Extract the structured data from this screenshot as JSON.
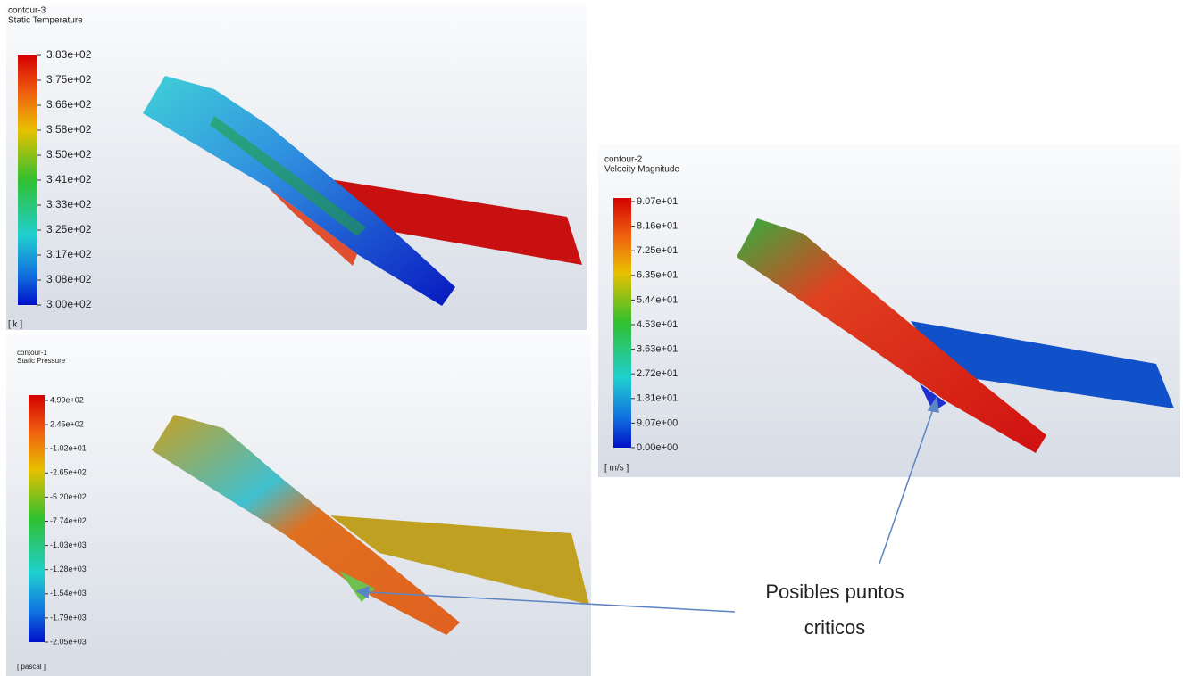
{
  "panels": [
    {
      "title": "contour-3",
      "subtitle": "Static Temperature",
      "legend": [
        "3.83e+02",
        "3.75e+02",
        "3.66e+02",
        "3.58e+02",
        "3.50e+02",
        "3.41e+02",
        "3.33e+02",
        "3.25e+02",
        "3.17e+02",
        "3.08e+02",
        "3.00e+02"
      ],
      "unit": "[ k ]"
    },
    {
      "title": "contour-1",
      "subtitle": "Static Pressure",
      "legend": [
        "4.99e+02",
        "2.45e+02",
        "-1.02e+01",
        "-2.65e+02",
        "-5.20e+02",
        "-7.74e+02",
        "-1.03e+03",
        "-1.28e+03",
        "-1.54e+03",
        "-1.79e+03",
        "-2.05e+03"
      ],
      "unit": "[ pascal ]"
    },
    {
      "title": "contour-2",
      "subtitle": "Velocity Magnitude",
      "legend": [
        "9.07e+01",
        "8.16e+01",
        "7.25e+01",
        "6.35e+01",
        "5.44e+01",
        "4.53e+01",
        "3.63e+01",
        "2.72e+01",
        "1.81e+01",
        "9.07e+00",
        "0.00e+00"
      ],
      "unit": "[ m/s ]"
    }
  ],
  "annotation": [
    "Posibles puntos",
    "criticos"
  ]
}
